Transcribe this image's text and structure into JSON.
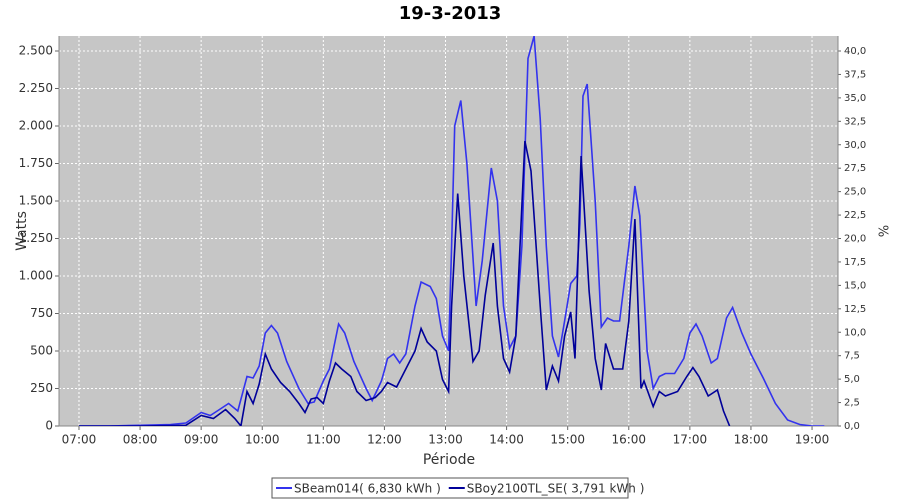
{
  "chart_data": {
    "type": "line",
    "title": "19-3-2013",
    "x_label": "Période",
    "y_label": "Watts",
    "y2_label": "%",
    "xlim": [
      6.673,
      19.425
    ],
    "xticks": [
      {
        "value": 7,
        "label": "07:00"
      },
      {
        "value": 8,
        "label": "08:00"
      },
      {
        "value": 9,
        "label": "09:00"
      },
      {
        "value": 10,
        "label": "10:00"
      },
      {
        "value": 11,
        "label": "11:00"
      },
      {
        "value": 12,
        "label": "12:00"
      },
      {
        "value": 13,
        "label": "13:00"
      },
      {
        "value": 14,
        "label": "14:00"
      },
      {
        "value": 15,
        "label": "15:00"
      },
      {
        "value": 16,
        "label": "16:00"
      },
      {
        "value": 17,
        "label": "17:00"
      },
      {
        "value": 18,
        "label": "18:00"
      },
      {
        "value": 19,
        "label": "19:00"
      }
    ],
    "ylim": [
      0,
      2600
    ],
    "yticks": [
      0,
      250,
      500,
      750,
      {
        "value": 1000,
        "label": "1.000"
      },
      {
        "value": 1250,
        "label": "1.250"
      },
      {
        "value": 1500,
        "label": "1.500"
      },
      {
        "value": 1750,
        "label": "1.750"
      },
      {
        "value": 2000,
        "label": "2.000"
      },
      {
        "value": 2250,
        "label": "2.250"
      },
      {
        "value": 2500,
        "label": "2.500"
      }
    ],
    "y2lim": [
      0,
      41.6
    ],
    "y2ticks": [
      {
        "value": 0,
        "label": "0,0"
      },
      {
        "value": 2.5,
        "label": "2,5"
      },
      {
        "value": 5,
        "label": "5,0"
      },
      {
        "value": 7.5,
        "label": "7,5"
      },
      {
        "value": 10,
        "label": "10,0"
      },
      {
        "value": 12.5,
        "label": "12,5"
      },
      {
        "value": 15,
        "label": "15,0"
      },
      {
        "value": 17.5,
        "label": "17,5"
      },
      {
        "value": 20,
        "label": "20,0"
      },
      {
        "value": 22.5,
        "label": "22,5"
      },
      {
        "value": 25,
        "label": "25,0"
      },
      {
        "value": 27.5,
        "label": "27,5"
      },
      {
        "value": 30,
        "label": "30,0"
      },
      {
        "value": 32.5,
        "label": "32,5"
      },
      {
        "value": 35,
        "label": "35,0"
      },
      {
        "value": 37.5,
        "label": "37,5"
      },
      {
        "value": 40,
        "label": "40,0"
      }
    ],
    "grid": true,
    "legend": "bottom",
    "series": [
      {
        "name": "SBeam014( 6,830 kWh )",
        "color": "#3333ee",
        "x": [
          7.0,
          7.5,
          8.0,
          8.5,
          8.75,
          9.0,
          9.15,
          9.3,
          9.45,
          9.6,
          9.75,
          9.85,
          9.95,
          10.05,
          10.15,
          10.25,
          10.4,
          10.6,
          10.75,
          10.85,
          11.0,
          11.1,
          11.25,
          11.35,
          11.5,
          11.7,
          11.8,
          11.95,
          12.0,
          12.05,
          12.15,
          12.25,
          12.35,
          12.5,
          12.6,
          12.75,
          12.85,
          12.95,
          13.05,
          13.1,
          13.15,
          13.25,
          13.35,
          13.5,
          13.6,
          13.75,
          13.85,
          13.95,
          14.05,
          14.15,
          14.25,
          14.35,
          14.45,
          14.55,
          14.65,
          14.75,
          14.85,
          14.95,
          15.05,
          15.15,
          15.2,
          15.25,
          15.32,
          15.45,
          15.55,
          15.65,
          15.75,
          15.85,
          16.0,
          16.1,
          16.18,
          16.3,
          16.4,
          16.5,
          16.6,
          16.75,
          16.9,
          17.0,
          17.1,
          17.2,
          17.35,
          17.45,
          17.6,
          17.7,
          17.85,
          18.0,
          18.2,
          18.4,
          18.6,
          18.8,
          19.0,
          19.2
        ],
        "values": [
          0,
          0,
          5,
          10,
          20,
          90,
          70,
          110,
          150,
          100,
          330,
          320,
          400,
          620,
          670,
          620,
          430,
          250,
          150,
          160,
          300,
          380,
          680,
          620,
          430,
          250,
          170,
          300,
          370,
          450,
          480,
          420,
          480,
          800,
          960,
          930,
          850,
          600,
          500,
          1200,
          2000,
          2170,
          1750,
          800,
          1100,
          1720,
          1500,
          800,
          520,
          600,
          1200,
          2450,
          2600,
          2050,
          1200,
          600,
          460,
          700,
          950,
          1000,
          1350,
          2200,
          2280,
          1500,
          660,
          720,
          700,
          700,
          1200,
          1600,
          1400,
          500,
          250,
          330,
          350,
          350,
          450,
          620,
          680,
          600,
          420,
          450,
          720,
          790,
          620,
          480,
          320,
          150,
          40,
          10,
          0,
          0
        ]
      },
      {
        "name": "SBoy2100TL_SE( 3,791 kWh )",
        "color": "#000099",
        "x": [
          7.0,
          8.0,
          8.75,
          9.0,
          9.2,
          9.4,
          9.55,
          9.65,
          9.75,
          9.85,
          9.95,
          10.05,
          10.15,
          10.3,
          10.45,
          10.6,
          10.7,
          10.8,
          10.9,
          11.0,
          11.1,
          11.2,
          11.3,
          11.45,
          11.55,
          11.7,
          11.85,
          11.95,
          12.05,
          12.2,
          12.35,
          12.5,
          12.6,
          12.7,
          12.85,
          12.95,
          13.05,
          13.1,
          13.2,
          13.3,
          13.45,
          13.55,
          13.65,
          13.78,
          13.85,
          13.95,
          14.05,
          14.15,
          14.3,
          14.4,
          14.55,
          14.65,
          14.75,
          14.85,
          14.95,
          15.05,
          15.12,
          15.22,
          15.35,
          15.45,
          15.55,
          15.62,
          15.75,
          15.9,
          16.0,
          16.1,
          16.2,
          16.25,
          16.4,
          16.5,
          16.6,
          16.8,
          16.95,
          17.05,
          17.15,
          17.3,
          17.45,
          17.55,
          17.65
        ],
        "values": [
          0,
          0,
          5,
          70,
          50,
          110,
          50,
          0,
          230,
          150,
          280,
          480,
          380,
          290,
          230,
          150,
          90,
          180,
          190,
          150,
          300,
          420,
          380,
          330,
          230,
          170,
          190,
          230,
          290,
          260,
          380,
          500,
          650,
          560,
          500,
          310,
          230,
          800,
          1550,
          1000,
          430,
          500,
          870,
          1220,
          800,
          450,
          360,
          600,
          1900,
          1700,
          800,
          240,
          400,
          300,
          600,
          760,
          450,
          1800,
          900,
          450,
          240,
          550,
          380,
          380,
          700,
          1380,
          250,
          300,
          130,
          230,
          200,
          230,
          330,
          390,
          330,
          200,
          240,
          100,
          0
        ]
      }
    ]
  }
}
